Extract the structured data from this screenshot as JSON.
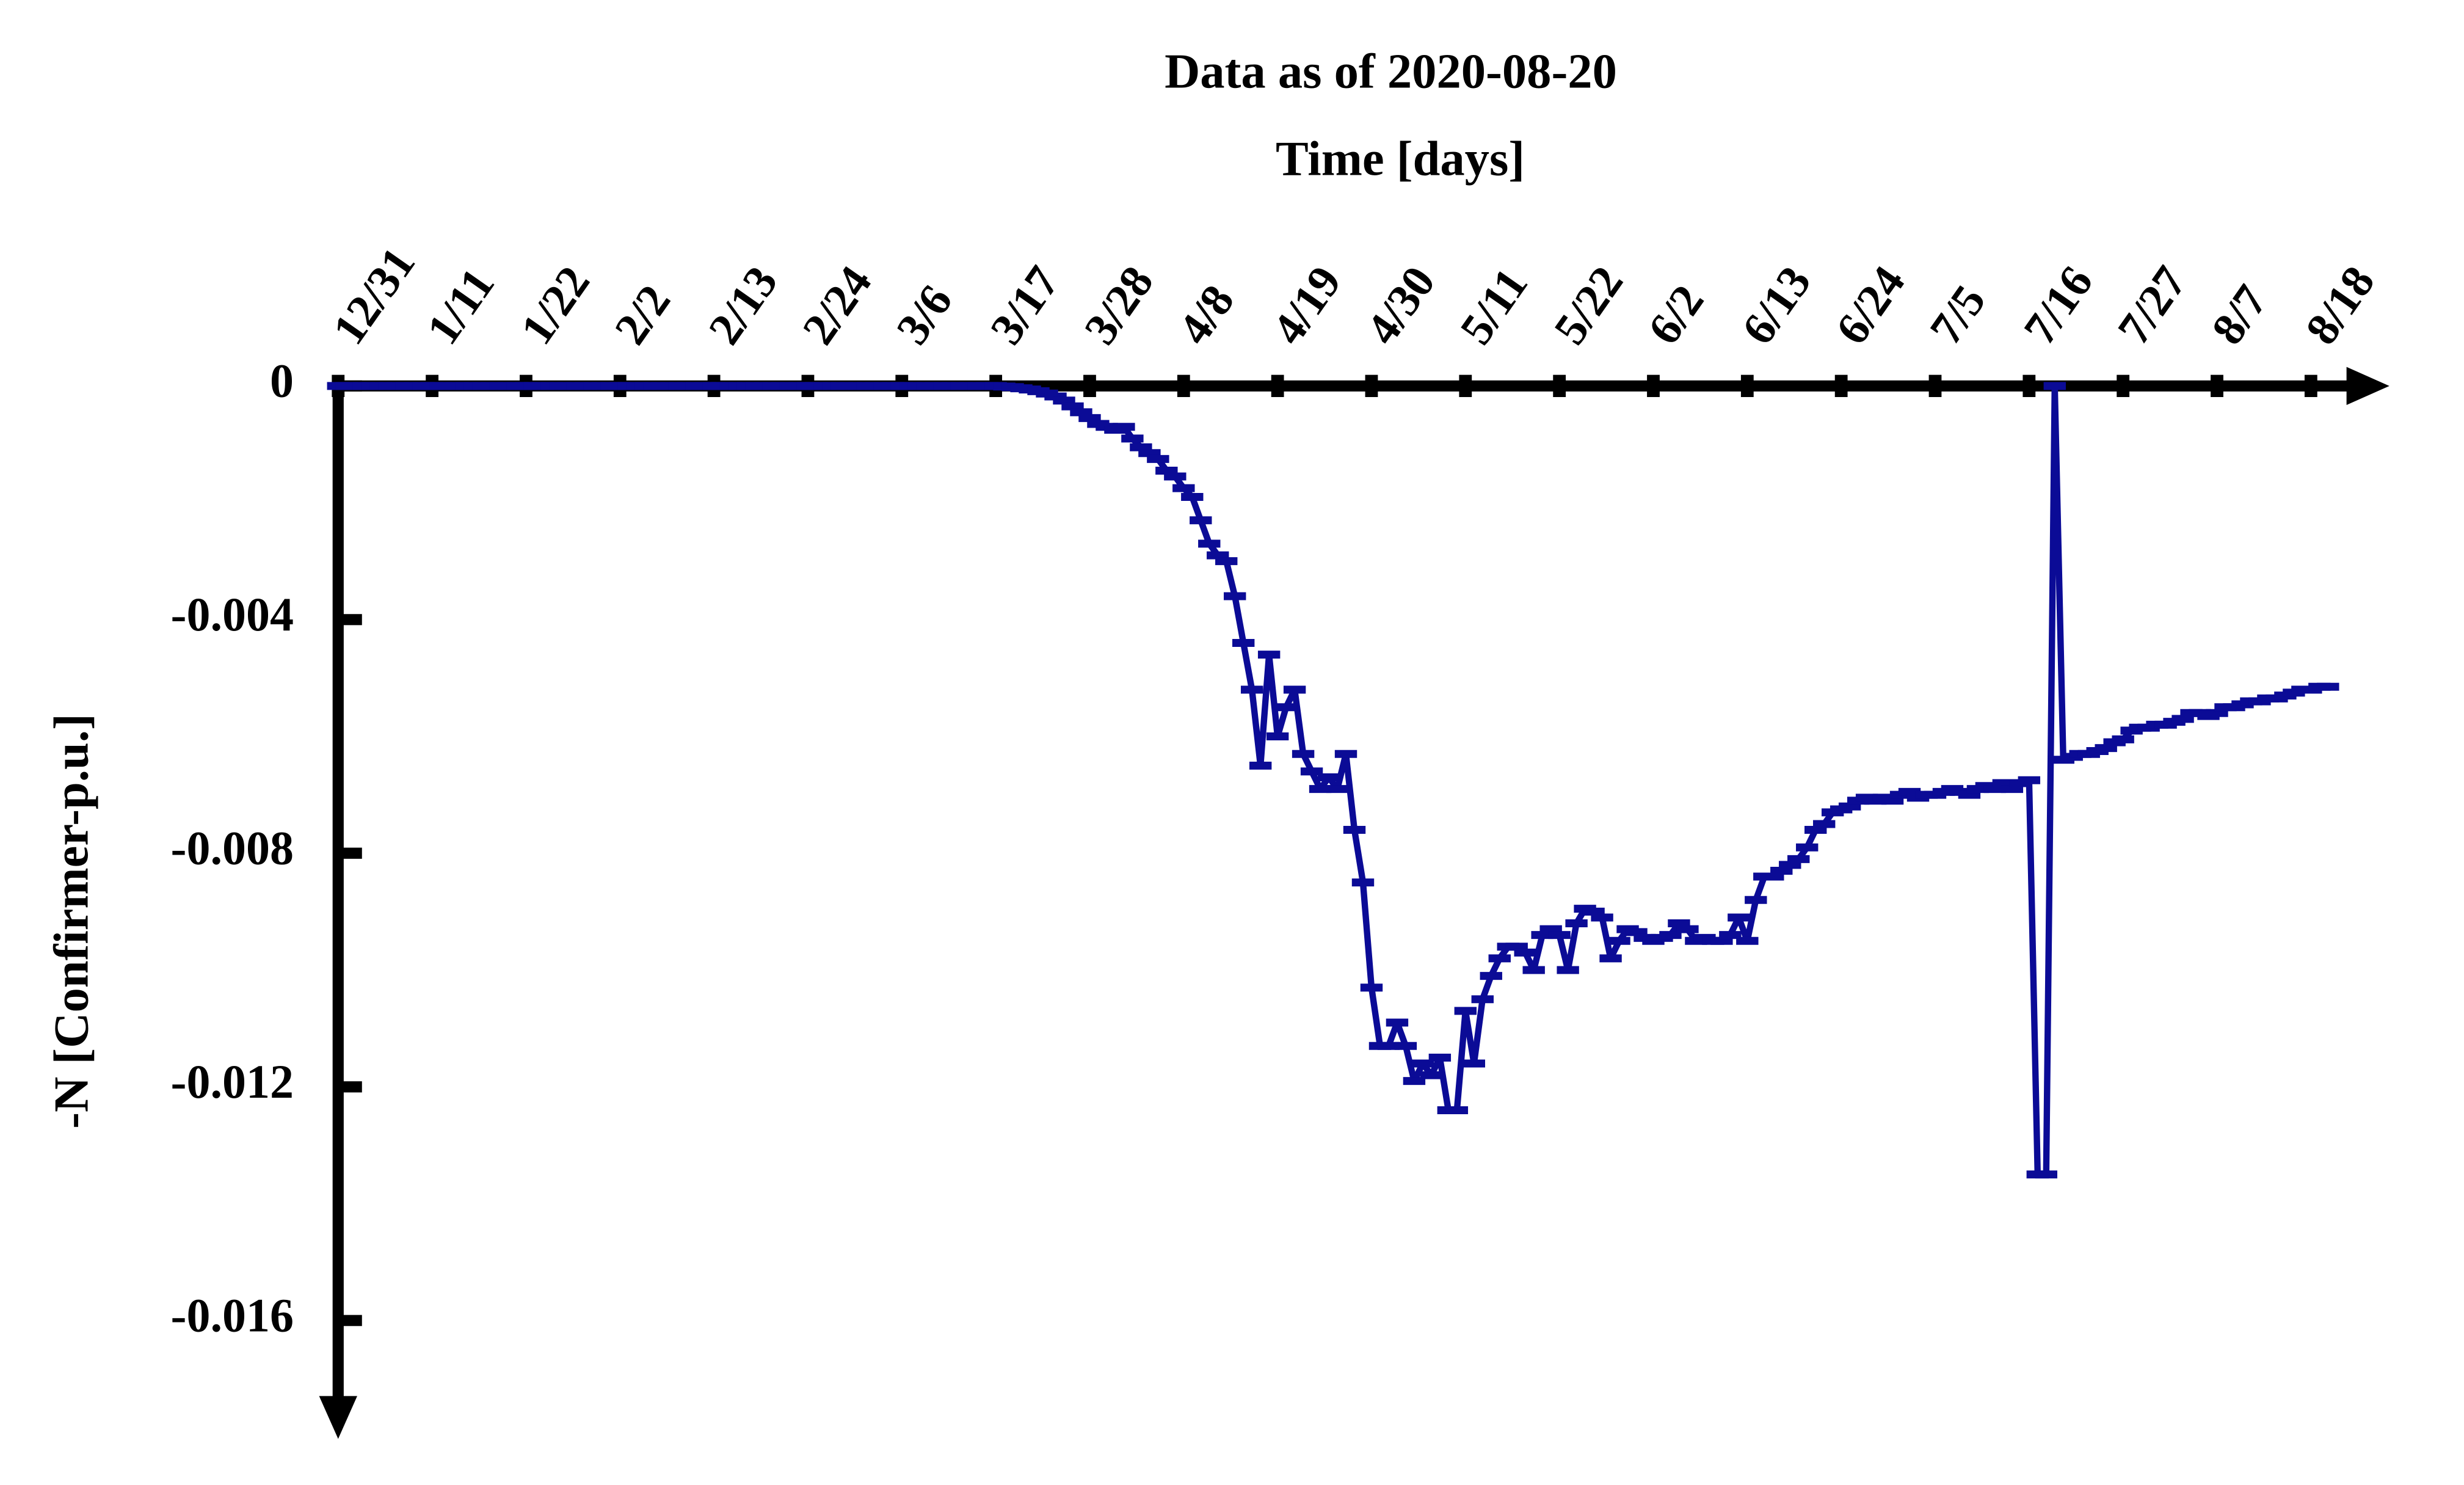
{
  "chart_data": {
    "type": "line",
    "title": "Data as of 2020-08-20",
    "xlabel": "Time [days]",
    "ylabel": "-N [Confirmer-p.u.]",
    "xlim": [
      0,
      240
    ],
    "ylim": [
      -0.018,
      0
    ],
    "xticks": [
      {
        "value": 0,
        "label": "12/31"
      },
      {
        "value": 11,
        "label": "1/11"
      },
      {
        "value": 22,
        "label": "1/22"
      },
      {
        "value": 33,
        "label": "2/2"
      },
      {
        "value": 44,
        "label": "2/13"
      },
      {
        "value": 55,
        "label": "2/24"
      },
      {
        "value": 66,
        "label": "3/6"
      },
      {
        "value": 77,
        "label": "3/17"
      },
      {
        "value": 88,
        "label": "3/28"
      },
      {
        "value": 99,
        "label": "4/8"
      },
      {
        "value": 110,
        "label": "4/19"
      },
      {
        "value": 121,
        "label": "4/30"
      },
      {
        "value": 132,
        "label": "5/11"
      },
      {
        "value": 143,
        "label": "5/22"
      },
      {
        "value": 154,
        "label": "6/2"
      },
      {
        "value": 165,
        "label": "6/13"
      },
      {
        "value": 176,
        "label": "6/24"
      },
      {
        "value": 187,
        "label": "7/5"
      },
      {
        "value": 198,
        "label": "7/16"
      },
      {
        "value": 209,
        "label": "7/27"
      },
      {
        "value": 220,
        "label": "8/7"
      },
      {
        "value": 231,
        "label": "8/18"
      }
    ],
    "yticks": [
      0,
      -0.004,
      -0.008,
      -0.012,
      -0.016
    ],
    "x": [
      0,
      1,
      2,
      3,
      4,
      5,
      6,
      7,
      8,
      9,
      10,
      11,
      12,
      13,
      14,
      15,
      16,
      17,
      18,
      19,
      20,
      21,
      22,
      23,
      24,
      25,
      26,
      27,
      28,
      29,
      30,
      31,
      32,
      33,
      34,
      35,
      36,
      37,
      38,
      39,
      40,
      41,
      42,
      43,
      44,
      45,
      46,
      47,
      48,
      49,
      50,
      51,
      52,
      53,
      54,
      55,
      56,
      57,
      58,
      59,
      60,
      61,
      62,
      63,
      64,
      65,
      66,
      67,
      68,
      69,
      70,
      71,
      72,
      73,
      74,
      75,
      76,
      77,
      78,
      79,
      80,
      81,
      82,
      83,
      84,
      85,
      86,
      87,
      88,
      89,
      90,
      91,
      92,
      93,
      94,
      95,
      96,
      97,
      98,
      99,
      100,
      101,
      102,
      103,
      104,
      105,
      106,
      107,
      108,
      109,
      110,
      111,
      112,
      113,
      114,
      115,
      116,
      117,
      118,
      119,
      120,
      121,
      122,
      123,
      124,
      125,
      126,
      127,
      128,
      129,
      130,
      131,
      132,
      133,
      134,
      135,
      136,
      137,
      138,
      139,
      140,
      141,
      142,
      143,
      144,
      145,
      146,
      147,
      148,
      149,
      150,
      151,
      152,
      153,
      154,
      155,
      156,
      157,
      158,
      159,
      160,
      161,
      162,
      163,
      164,
      165,
      166,
      167,
      168,
      169,
      170,
      171,
      172,
      173,
      174,
      175,
      176,
      177,
      178,
      179,
      180,
      181,
      182,
      183,
      184,
      185,
      186,
      187,
      188,
      189,
      190,
      191,
      192,
      193,
      194,
      195,
      196,
      197,
      198,
      199,
      200,
      201,
      202,
      203,
      204,
      205,
      206,
      207,
      208,
      209,
      210,
      211,
      212,
      213,
      214,
      215,
      216,
      217,
      218,
      219,
      220,
      221,
      222,
      223,
      224,
      225,
      226,
      227,
      228,
      229,
      230,
      231,
      232,
      233
    ],
    "series": [
      {
        "color": "#0b0b96",
        "values": [
          0,
          0,
          0,
          0,
          0,
          0,
          0,
          0,
          0,
          0,
          0,
          0,
          0,
          0,
          0,
          0,
          0,
          0,
          0,
          0,
          0,
          0,
          0,
          0,
          0,
          0,
          0,
          0,
          0,
          0,
          0,
          0,
          0,
          0,
          0,
          0,
          0,
          0,
          0,
          0,
          0,
          0,
          0,
          0,
          0,
          0,
          0,
          0,
          0,
          0,
          0,
          0,
          0,
          0,
          0,
          0,
          0,
          0,
          0,
          0,
          0,
          0,
          0,
          0,
          0,
          0,
          0,
          0,
          0,
          0,
          0,
          0,
          0,
          0,
          0,
          0,
          0,
          0,
          -1e-05,
          -2e-05,
          -4e-05,
          -6e-05,
          -9e-05,
          -0.00013,
          -0.00018,
          -0.00025,
          -0.00035,
          -0.00045,
          -0.00055,
          -0.00065,
          -0.0007,
          -0.00075,
          -0.0007,
          -0.0009,
          -0.00105,
          -0.00115,
          -0.00125,
          -0.00145,
          -0.00155,
          -0.00175,
          -0.0019,
          -0.0023,
          -0.0027,
          -0.0029,
          -0.003,
          -0.0036,
          -0.0044,
          -0.0052,
          -0.0065,
          -0.0046,
          -0.006,
          -0.0055,
          -0.0052,
          -0.0063,
          -0.0066,
          -0.0069,
          -0.0067,
          -0.0069,
          -0.0063,
          -0.0076,
          -0.0085,
          -0.0103,
          -0.0113,
          -0.0113,
          -0.0109,
          -0.0113,
          -0.0119,
          -0.0116,
          -0.0118,
          -0.0115,
          -0.0124,
          -0.0124,
          -0.0107,
          -0.0116,
          -0.0105,
          -0.0101,
          -0.0098,
          -0.0096,
          -0.0096,
          -0.0097,
          -0.01,
          -0.0094,
          -0.0093,
          -0.0094,
          -0.01,
          -0.0092,
          -0.00895,
          -0.009,
          -0.0091,
          -0.0098,
          -0.0095,
          -0.0093,
          -0.00935,
          -0.00945,
          -0.0095,
          -0.00945,
          -0.0094,
          -0.0092,
          -0.0093,
          -0.0095,
          -0.00945,
          -0.0095,
          -0.0095,
          -0.0094,
          -0.0091,
          -0.0095,
          -0.0088,
          -0.0084,
          -0.0084,
          -0.0083,
          -0.0082,
          -0.0081,
          -0.0079,
          -0.0076,
          -0.0075,
          -0.0073,
          -0.00725,
          -0.0072,
          -0.0071,
          -0.00705,
          -0.0071,
          -0.00705,
          -0.0071,
          -0.007,
          -0.00695,
          -0.00705,
          -0.007,
          -0.007,
          -0.00695,
          -0.0069,
          -0.00695,
          -0.007,
          -0.0069,
          -0.00685,
          -0.0069,
          -0.0068,
          -0.0069,
          -0.0068,
          -0.00675,
          -0.0135,
          -0.0135,
          0,
          -0.0064,
          -0.00635,
          -0.0063,
          -0.0063,
          -0.00625,
          -0.0062,
          -0.0061,
          -0.00605,
          -0.0059,
          -0.00585,
          -0.00585,
          -0.0058,
          -0.0058,
          -0.00575,
          -0.0057,
          -0.0056,
          -0.0056,
          -0.00565,
          -0.0056,
          -0.0055,
          -0.0055,
          -0.00545,
          -0.0054,
          -0.0054,
          -0.00535,
          -0.00535,
          -0.0053,
          -0.00525,
          -0.0052,
          -0.0052,
          -0.00515,
          -0.00515
        ]
      }
    ]
  }
}
